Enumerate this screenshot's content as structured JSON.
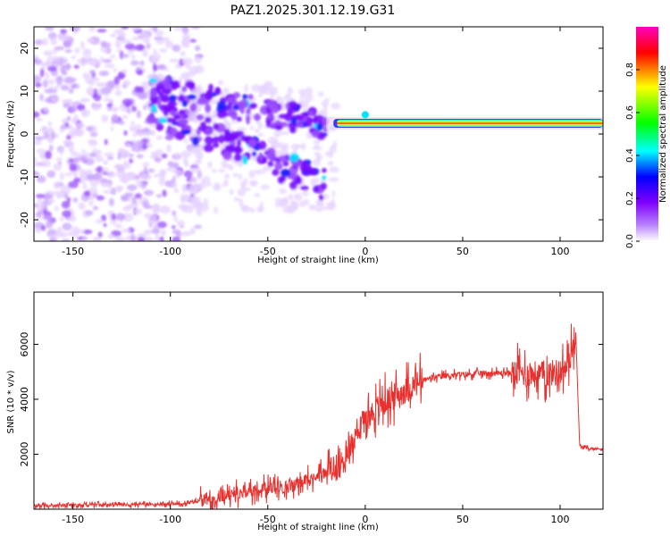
{
  "title": "PAZ1.2025.301.12.19.G31",
  "colors": {
    "snr_line": "#e8312e",
    "background": "#ffffff",
    "colormap": [
      "#ffffff",
      "#8000ff",
      "#0000ff",
      "#00ffff",
      "#00ff00",
      "#ffff00",
      "#ff0000"
    ]
  },
  "chart_data": [
    {
      "type": "heatmap",
      "title": "PAZ1.2025.301.12.19.G31",
      "xlabel": "Height of straight line (km)",
      "ylabel": "Frequency (Hz)",
      "xlim": [
        -170,
        122
      ],
      "ylim": [
        -25,
        25
      ],
      "xticks": [
        -150,
        -100,
        -50,
        0,
        50,
        100
      ],
      "yticks": [
        -20,
        -10,
        0,
        10,
        20
      ],
      "colorbar": {
        "label": "Normalized spectral amplitude",
        "range": [
          0.0,
          1.0
        ],
        "ticks": [
          "0.0",
          "0.2",
          "0.4",
          "0.6",
          "0.8"
        ]
      },
      "features": [
        {
          "x_range": [
            -170,
            -85
          ],
          "freq_range": [
            -25,
            25
          ],
          "amplitude": 0.05,
          "desc": "diffuse noise"
        },
        {
          "x_range": [
            -110,
            -20
          ],
          "freq_range": [
            -15,
            15
          ],
          "amplitude": 0.2,
          "desc": "descending blob clusters"
        },
        {
          "x_range": [
            -20,
            122
          ],
          "freq": 2.5,
          "amplitude": 0.9,
          "desc": "strong steady tone"
        }
      ]
    },
    {
      "type": "line",
      "xlabel": "Height of straight line (km)",
      "ylabel": "SNR (10 * v/v)",
      "xlim": [
        -170,
        122
      ],
      "ylim": [
        0,
        7900
      ],
      "xticks": [
        -150,
        -100,
        -50,
        0,
        50,
        100
      ],
      "yticks": [
        2000,
        4000,
        6000
      ],
      "x": [
        -170,
        -150,
        -130,
        -110,
        -95,
        -85,
        -75,
        -65,
        -55,
        -45,
        -35,
        -25,
        -15,
        -10,
        -5,
        0,
        5,
        10,
        20,
        30,
        40,
        50,
        60,
        70,
        80,
        90,
        100,
        104,
        106,
        108,
        110,
        115,
        122
      ],
      "values": [
        120,
        150,
        160,
        170,
        200,
        300,
        500,
        600,
        700,
        800,
        900,
        1200,
        1500,
        1800,
        2800,
        3300,
        3600,
        3900,
        4300,
        4700,
        4850,
        4900,
        4950,
        4950,
        4950,
        4900,
        5000,
        5200,
        5800,
        6500,
        2300,
        2200,
        2200
      ]
    }
  ]
}
